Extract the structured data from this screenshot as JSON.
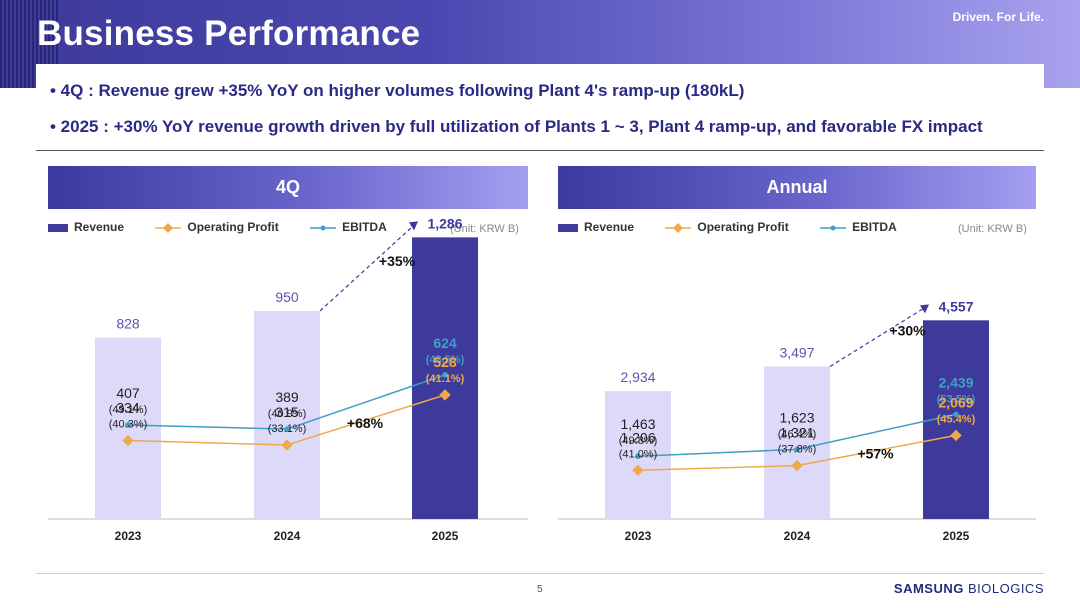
{
  "header": {
    "title": "Business Performance",
    "tagline": "Driven. For Life."
  },
  "bullets": [
    "• 4Q : Revenue grew +35% YoY on higher volumes following Plant 4's ramp-up (180kL)",
    "• 2025 : +30% YoY revenue growth driven by full utilization of Plants 1 ~ 3, Plant 4 ramp-up, and favorable FX impact"
  ],
  "legend": {
    "revenue": "Revenue",
    "op": "Operating Profit",
    "ebitda": "EBITDA"
  },
  "colors": {
    "revenue_light": "#dcdaf8",
    "revenue_dark": "#3e3a9c",
    "op": "#f0a94a",
    "ebitda": "#3f9fc4",
    "revenue_label": "#5a56b0"
  },
  "chart_data": [
    {
      "type": "bar",
      "panel_title": "4Q",
      "unit": "(Unit: KRW B)",
      "categories": [
        "2023",
        "2024",
        "2025"
      ],
      "series": [
        {
          "name": "Revenue",
          "type": "bar",
          "values": [
            828,
            950,
            1286
          ],
          "labels": [
            "828",
            "950",
            "1,286"
          ]
        },
        {
          "name": "Operating Profit",
          "type": "line",
          "values": [
            334,
            315,
            528
          ],
          "labels": [
            "334",
            "315",
            "528"
          ],
          "margins": [
            "(40.3%)",
            "(33.1%)",
            "(41.1%)"
          ]
        },
        {
          "name": "EBITDA",
          "type": "line",
          "values": [
            407,
            389,
            624
          ],
          "labels": [
            "407",
            "389",
            "624"
          ],
          "margins": [
            "(49.1%)",
            "(40.9%)",
            "(48.5%)"
          ]
        }
      ],
      "annotations": {
        "revenue_growth": "+35%",
        "op_growth": "+68%"
      }
    },
    {
      "type": "bar",
      "panel_title": "Annual",
      "unit": "(Unit: KRW B)",
      "categories": [
        "2023",
        "2024",
        "2025"
      ],
      "series": [
        {
          "name": "Revenue",
          "type": "bar",
          "values": [
            2934,
            3497,
            4557
          ],
          "labels": [
            "2,934",
            "3,497",
            "4,557"
          ]
        },
        {
          "name": "Operating Profit",
          "type": "line",
          "values": [
            1206,
            1321,
            2069
          ],
          "labels": [
            "1,206",
            "1,321",
            "2,069"
          ],
          "margins": [
            "(41.0%)",
            "(37.8%)",
            "(45.4%)"
          ]
        },
        {
          "name": "EBITDA",
          "type": "line",
          "values": [
            1463,
            1623,
            2439
          ],
          "labels": [
            "1,463",
            "1,623",
            "2,439"
          ],
          "margins": [
            "(49.8%)",
            "(46.4%)",
            "(53.5%)"
          ]
        }
      ],
      "annotations": {
        "revenue_growth": "+30%",
        "op_growth": "+57%"
      }
    }
  ],
  "footer": {
    "page": "5",
    "brand_bold": "SAMSUNG",
    "brand_rest": " BIOLOGICS"
  }
}
